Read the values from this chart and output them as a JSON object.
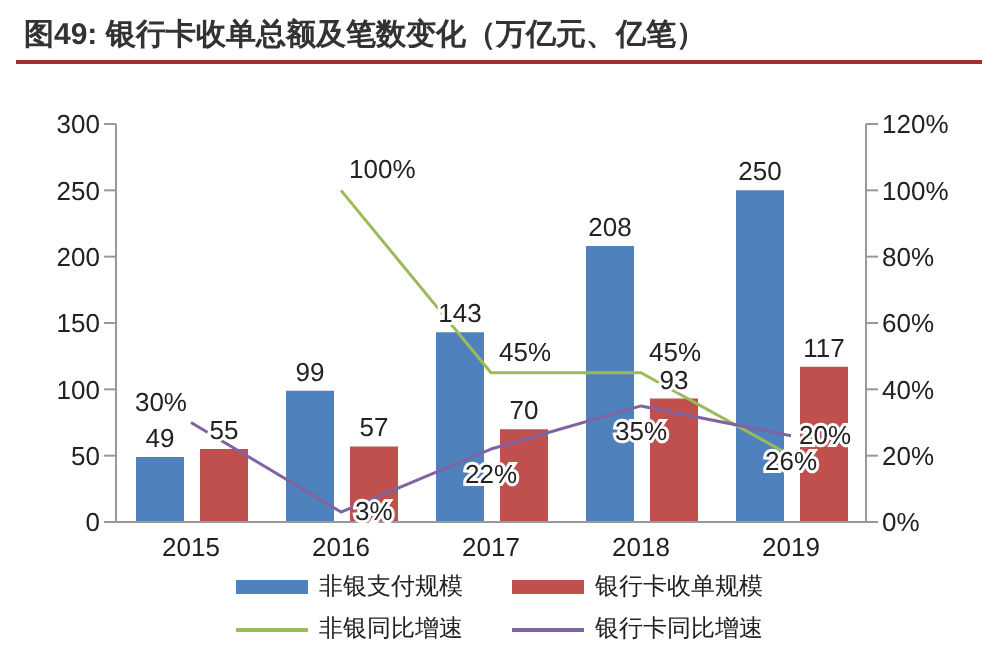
{
  "chart_data": {
    "type": "bar",
    "title": "图49:  银行卡收单总额及笔数变化（万亿元、亿笔）",
    "categories": [
      "2015",
      "2016",
      "2017",
      "2018",
      "2019"
    ],
    "series": [
      {
        "name": "非银支付规模",
        "color": "#4f81bd",
        "values": [
          49,
          99,
          143,
          208,
          250
        ],
        "value_labels": [
          "49",
          "99",
          "143",
          "208",
          "250"
        ]
      },
      {
        "name": "银行卡收单规模",
        "color": "#c0504d",
        "values": [
          55,
          57,
          70,
          93,
          117
        ],
        "value_labels": [
          "55",
          "57",
          "70",
          "93",
          "117"
        ]
      },
      {
        "name": "非银同比增速",
        "type": "line",
        "axis": "y2",
        "color": "#9bbb59",
        "values": [
          null,
          100,
          45,
          45,
          20
        ],
        "value_labels": [
          null,
          "100%",
          "45%",
          "45%",
          "20%"
        ]
      },
      {
        "name": "银行卡同比增速",
        "type": "line",
        "axis": "y2",
        "color": "#8064a2",
        "values": [
          30,
          3,
          22,
          35,
          26
        ],
        "value_labels": [
          "30%",
          "3%",
          "22%",
          "35%",
          "26%"
        ]
      }
    ],
    "ylim": [
      0,
      300
    ],
    "yticks": [
      0,
      50,
      100,
      150,
      200,
      250,
      300
    ],
    "y2lim": [
      0,
      120
    ],
    "y2ticks": [
      {
        "value": 0,
        "label": "0%"
      },
      {
        "value": 20,
        "label": "20%"
      },
      {
        "value": 40,
        "label": "40%"
      },
      {
        "value": 60,
        "label": "60%"
      },
      {
        "value": 80,
        "label": "80%"
      },
      {
        "value": 100,
        "label": "100%"
      },
      {
        "value": 120,
        "label": "120%"
      }
    ],
    "grid": false,
    "legend": "bottom",
    "marker": "none",
    "line_style": "solid"
  }
}
